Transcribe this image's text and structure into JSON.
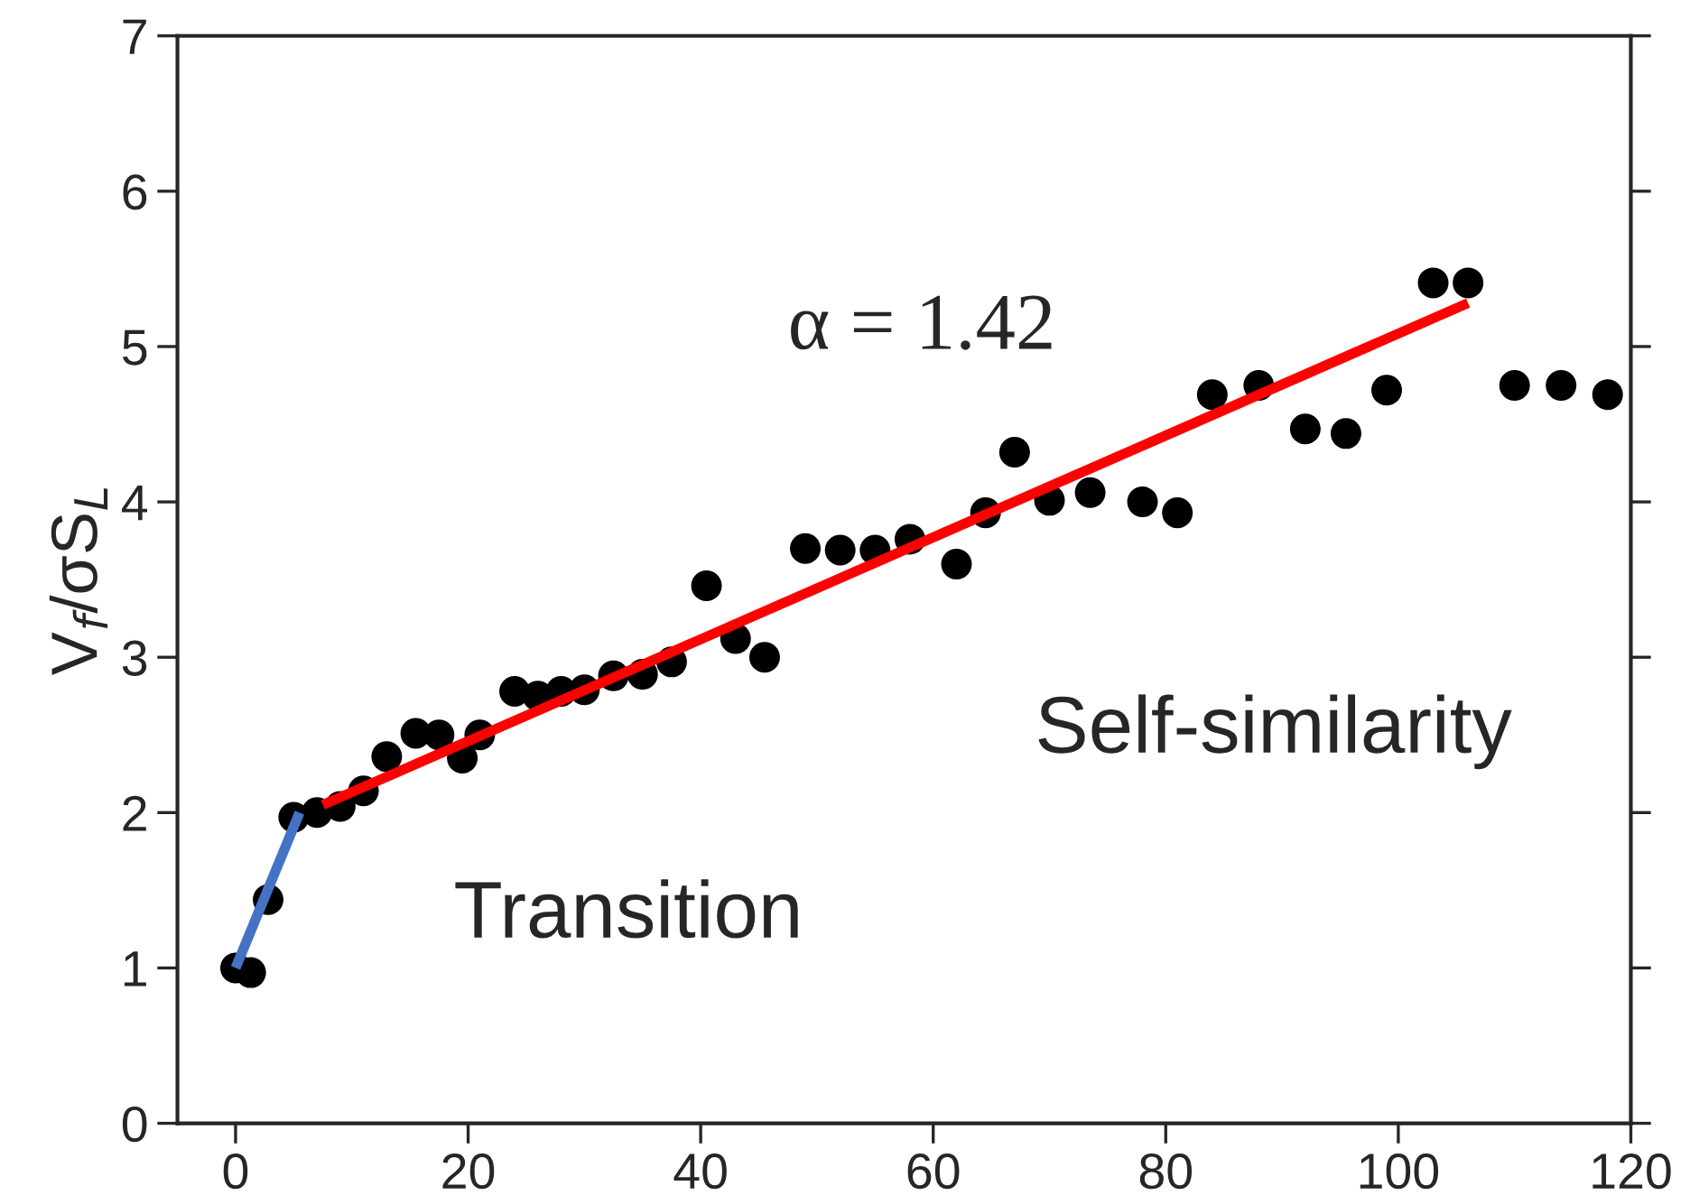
{
  "chart_data": {
    "type": "scatter",
    "ylabel": "V$_{f}$/σS$_{L}$",
    "xlim": [
      -5,
      120
    ],
    "ylim": [
      0,
      7
    ],
    "xticks": [
      0,
      20,
      40,
      60,
      80,
      100,
      120
    ],
    "yticks": [
      0,
      1,
      2,
      3,
      4,
      5,
      6,
      7
    ],
    "grid": false,
    "series": [
      {
        "marker": "circle",
        "color": "#000000",
        "x": [
          0,
          1.3,
          2.8,
          5,
          7,
          9,
          11,
          13,
          15.5,
          17.5,
          19.5,
          21,
          24,
          26,
          28,
          30,
          32.5,
          35,
          37.5,
          40.5,
          43,
          45.5,
          49,
          52,
          55,
          58,
          62,
          64.5,
          67,
          70,
          73.5,
          78,
          81,
          84,
          88,
          92,
          95.5,
          99,
          103,
          106,
          110,
          114,
          118
        ],
        "values": [
          1.0,
          0.97,
          1.44,
          1.97,
          2.0,
          2.04,
          2.14,
          2.36,
          2.51,
          2.5,
          2.35,
          2.5,
          2.78,
          2.75,
          2.78,
          2.79,
          2.88,
          2.89,
          2.97,
          3.46,
          3.12,
          3.0,
          3.7,
          3.69,
          3.69,
          3.76,
          3.6,
          3.93,
          4.32,
          4.01,
          4.06,
          4.0,
          3.93,
          4.69,
          4.75,
          4.47,
          4.44,
          4.72,
          5.41,
          5.41,
          4.75,
          4.75,
          4.69
        ]
      },
      {
        "type": "line",
        "color": "#4472c4",
        "x": [
          0,
          5.5
        ],
        "values": [
          1.0,
          2.0
        ]
      },
      {
        "type": "line",
        "color": "#ff0000",
        "x": [
          7.5,
          106
        ],
        "values": [
          2.05,
          5.28
        ]
      }
    ],
    "annotations": [
      "α = 1.42",
      "Self-similarity",
      "Transition"
    ]
  }
}
